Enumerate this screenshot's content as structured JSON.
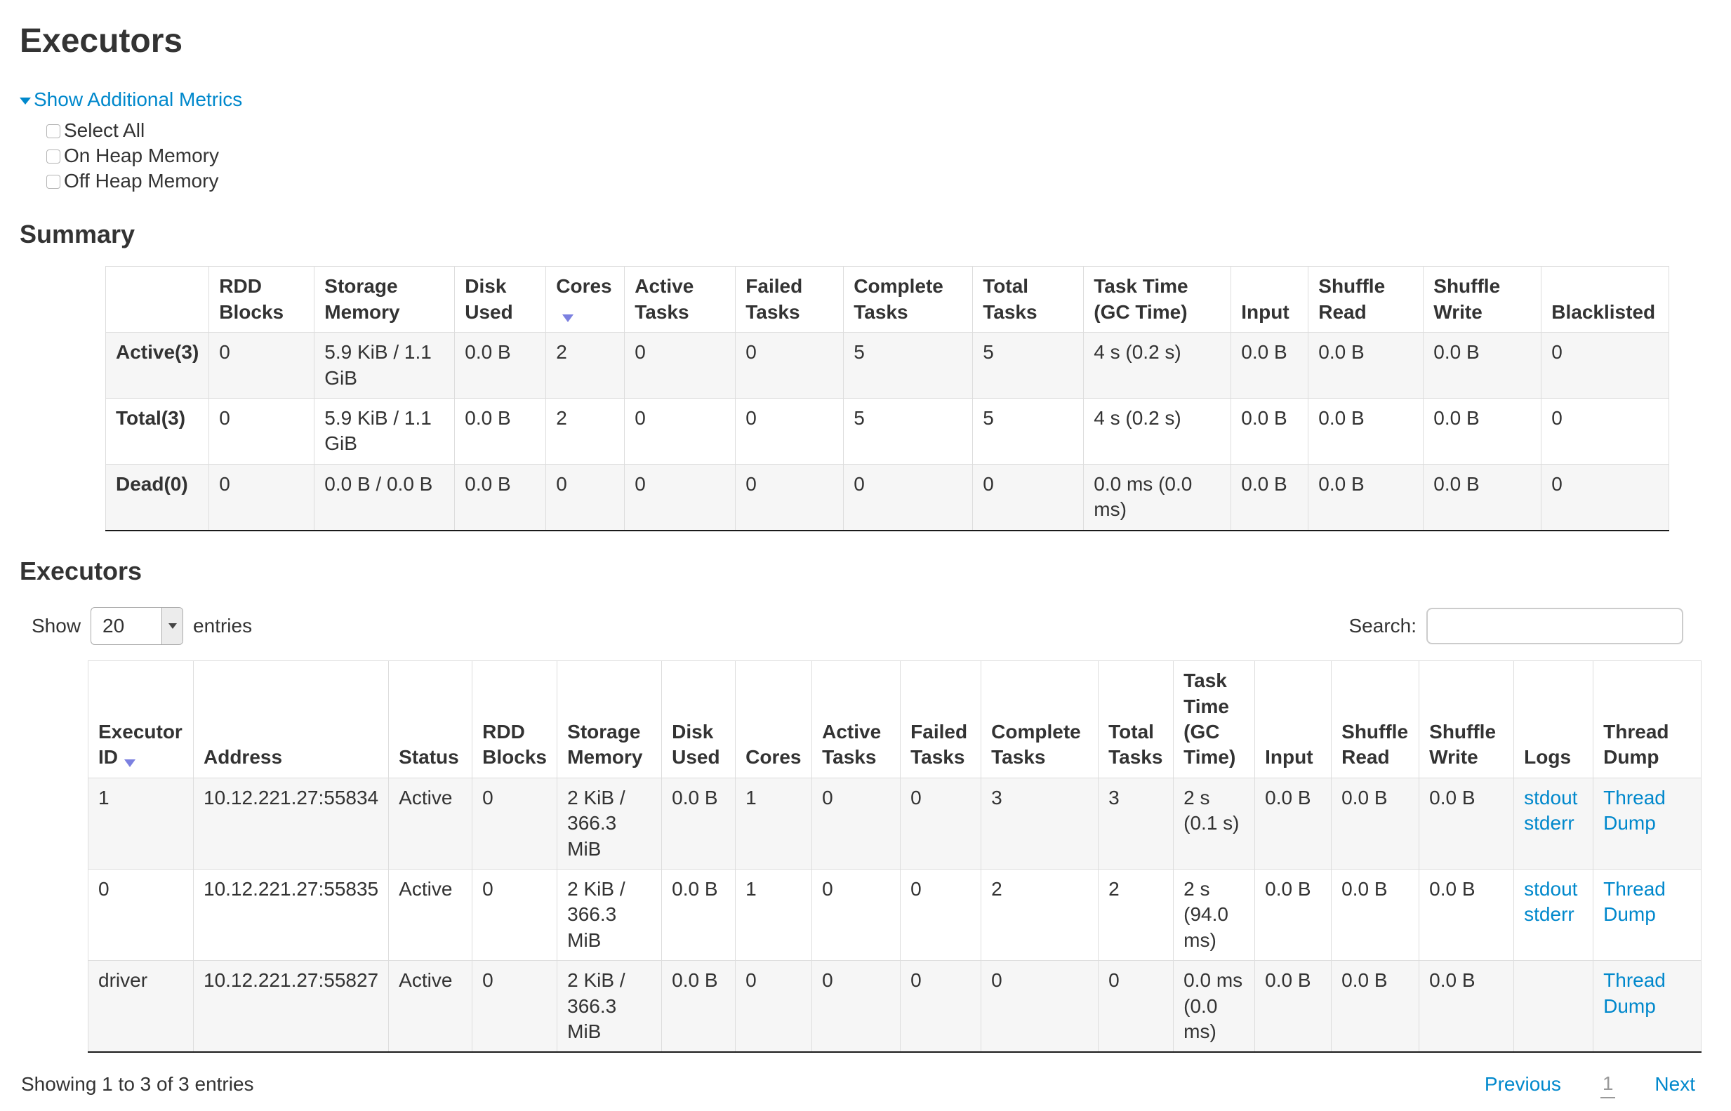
{
  "page": {
    "title": "Executors"
  },
  "colors": {
    "link": "#0088cc",
    "sort_arrow": "#7b80e0",
    "stripe": "#f6f6f6"
  },
  "metrics_toggle": {
    "label": "Show Additional Metrics",
    "options": [
      "Select All",
      "On Heap Memory",
      "Off Heap Memory"
    ]
  },
  "summary": {
    "heading": "Summary",
    "columns": [
      "",
      "RDD Blocks",
      "Storage Memory",
      "Disk Used",
      "Cores",
      "Active Tasks",
      "Failed Tasks",
      "Complete Tasks",
      "Total Tasks",
      "Task Time (GC Time)",
      "Input",
      "Shuffle Read",
      "Shuffle Write",
      "Blacklisted"
    ],
    "sorted_column": "Cores",
    "rows": [
      {
        "label": "Active(3)",
        "cells": [
          "0",
          "5.9 KiB / 1.1 GiB",
          "0.0 B",
          "2",
          "0",
          "0",
          "5",
          "5",
          "4 s (0.2 s)",
          "0.0 B",
          "0.0 B",
          "0.0 B",
          "0"
        ]
      },
      {
        "label": "Total(3)",
        "cells": [
          "0",
          "5.9 KiB / 1.1 GiB",
          "0.0 B",
          "2",
          "0",
          "0",
          "5",
          "5",
          "4 s (0.2 s)",
          "0.0 B",
          "0.0 B",
          "0.0 B",
          "0"
        ]
      },
      {
        "label": "Dead(0)",
        "cells": [
          "0",
          "0.0 B / 0.0 B",
          "0.0 B",
          "0",
          "0",
          "0",
          "0",
          "0",
          "0.0 ms (0.0 ms)",
          "0.0 B",
          "0.0 B",
          "0.0 B",
          "0"
        ]
      }
    ]
  },
  "executors": {
    "heading": "Executors",
    "show_label": "Show",
    "page_size": "20",
    "entries_label": "entries",
    "search_label": "Search:",
    "search_value": "",
    "columns": [
      "Executor ID",
      "Address",
      "Status",
      "RDD Blocks",
      "Storage Memory",
      "Disk Used",
      "Cores",
      "Active Tasks",
      "Failed Tasks",
      "Complete Tasks",
      "Total Tasks",
      "Task Time (GC Time)",
      "Input",
      "Shuffle Read",
      "Shuffle Write",
      "Logs",
      "Thread Dump"
    ],
    "sorted_column": "Executor ID",
    "rows": [
      {
        "cells": [
          "1",
          "10.12.221.27:55834",
          "Active",
          "0",
          "2 KiB / 366.3 MiB",
          "0.0 B",
          "1",
          "0",
          "0",
          "3",
          "3",
          "2 s (0.1 s)",
          "0.0 B",
          "0.0 B",
          "0.0 B"
        ],
        "logs": [
          "stdout",
          "stderr"
        ],
        "thread_dump": "Thread Dump"
      },
      {
        "cells": [
          "0",
          "10.12.221.27:55835",
          "Active",
          "0",
          "2 KiB / 366.3 MiB",
          "0.0 B",
          "1",
          "0",
          "0",
          "2",
          "2",
          "2 s (94.0 ms)",
          "0.0 B",
          "0.0 B",
          "0.0 B"
        ],
        "logs": [
          "stdout",
          "stderr"
        ],
        "thread_dump": "Thread Dump"
      },
      {
        "cells": [
          "driver",
          "10.12.221.27:55827",
          "Active",
          "0",
          "2 KiB / 366.3 MiB",
          "0.0 B",
          "0",
          "0",
          "0",
          "0",
          "0",
          "0.0 ms (0.0 ms)",
          "0.0 B",
          "0.0 B",
          "0.0 B"
        ],
        "logs": [],
        "thread_dump": "Thread Dump"
      }
    ],
    "footer": {
      "info": "Showing 1 to 3 of 3 entries",
      "previous": "Previous",
      "current_page": "1",
      "next": "Next"
    }
  }
}
